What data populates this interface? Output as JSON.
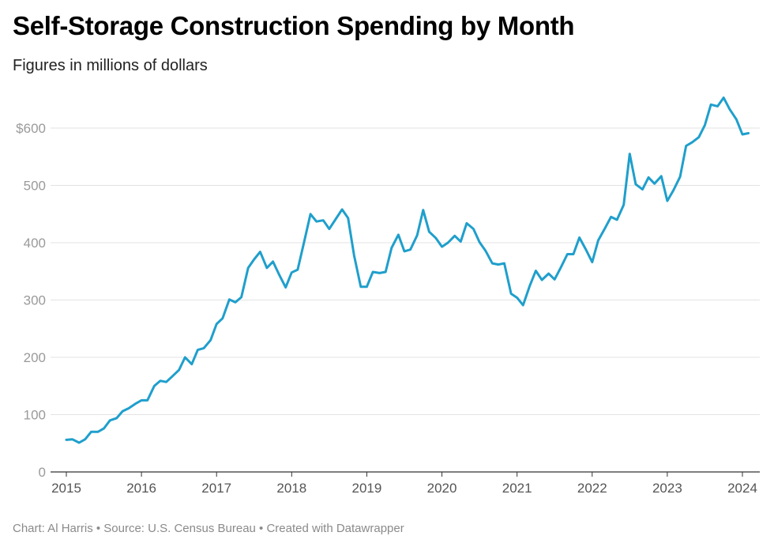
{
  "chart_data": {
    "type": "line",
    "title": "Self-Storage Construction Spending by Month",
    "subtitle": "Figures in millions of dollars",
    "xlabel": "",
    "ylabel": "",
    "ylim": [
      0,
      600
    ],
    "xlim": [
      2015,
      2024.25
    ],
    "y_ticks": [
      {
        "value": 0,
        "label": "0"
      },
      {
        "value": 100,
        "label": "100"
      },
      {
        "value": 200,
        "label": "200"
      },
      {
        "value": 300,
        "label": "300"
      },
      {
        "value": 400,
        "label": "400"
      },
      {
        "value": 500,
        "label": "500"
      },
      {
        "value": 600,
        "label": "$600"
      }
    ],
    "x_ticks": [
      "2015",
      "2016",
      "2017",
      "2018",
      "2019",
      "2020",
      "2021",
      "2022",
      "2023",
      "2024"
    ],
    "grid": true,
    "line_color": "#1f9fcc",
    "series": [
      {
        "name": "",
        "x": [
          2015.0,
          2015.08,
          2015.17,
          2015.25,
          2015.33,
          2015.42,
          2015.5,
          2015.58,
          2015.67,
          2015.75,
          2015.83,
          2015.92,
          2016.0,
          2016.08,
          2016.17,
          2016.25,
          2016.33,
          2016.42,
          2016.5,
          2016.58,
          2016.67,
          2016.75,
          2016.83,
          2016.92,
          2017.0,
          2017.08,
          2017.17,
          2017.25,
          2017.33,
          2017.42,
          2017.5,
          2017.58,
          2017.67,
          2017.75,
          2017.83,
          2017.92,
          2018.0,
          2018.08,
          2018.17,
          2018.25,
          2018.33,
          2018.42,
          2018.5,
          2018.58,
          2018.67,
          2018.75,
          2018.83,
          2018.92,
          2019.0,
          2019.08,
          2019.17,
          2019.25,
          2019.33,
          2019.42,
          2019.5,
          2019.58,
          2019.67,
          2019.75,
          2019.83,
          2019.92,
          2020.0,
          2020.08,
          2020.17,
          2020.25,
          2020.33,
          2020.42,
          2020.5,
          2020.58,
          2020.67,
          2020.75,
          2020.83,
          2020.92,
          2021.0,
          2021.08,
          2021.17,
          2021.25,
          2021.33,
          2021.42,
          2021.5,
          2021.58,
          2021.67,
          2021.75,
          2021.83,
          2021.92,
          2022.0,
          2022.08,
          2022.17,
          2022.25,
          2022.33,
          2022.42,
          2022.5,
          2022.58,
          2022.67,
          2022.75,
          2022.83,
          2022.92,
          2023.0,
          2023.08,
          2023.17,
          2023.25,
          2023.33,
          2023.42,
          2023.5,
          2023.58,
          2023.67,
          2023.75,
          2023.83,
          2023.92,
          2024.0,
          2024.08
        ],
        "values": [
          56,
          57,
          51,
          57,
          70,
          70,
          76,
          90,
          94,
          106,
          111,
          119,
          125,
          125,
          150,
          159,
          157,
          168,
          178,
          200,
          188,
          213,
          216,
          230,
          258,
          268,
          301,
          296,
          305,
          356,
          371,
          384,
          356,
          367,
          345,
          322,
          348,
          353,
          404,
          450,
          437,
          439,
          424,
          440,
          458,
          443,
          378,
          323,
          323,
          349,
          347,
          349,
          391,
          414,
          385,
          388,
          413,
          457,
          419,
          408,
          393,
          400,
          412,
          402,
          434,
          424,
          401,
          386,
          364,
          362,
          364,
          311,
          304,
          291,
          325,
          351,
          335,
          346,
          336,
          356,
          380,
          380,
          409,
          387,
          366,
          404,
          425,
          445,
          440,
          466,
          555,
          502,
          493,
          514,
          503,
          516,
          473,
          491,
          515,
          569,
          575,
          584,
          605,
          641,
          638,
          653,
          633,
          615,
          589,
          591
        ]
      }
    ]
  },
  "footer": "Chart: Al Harris • Source: U.S. Census Bureau • Created with Datawrapper"
}
